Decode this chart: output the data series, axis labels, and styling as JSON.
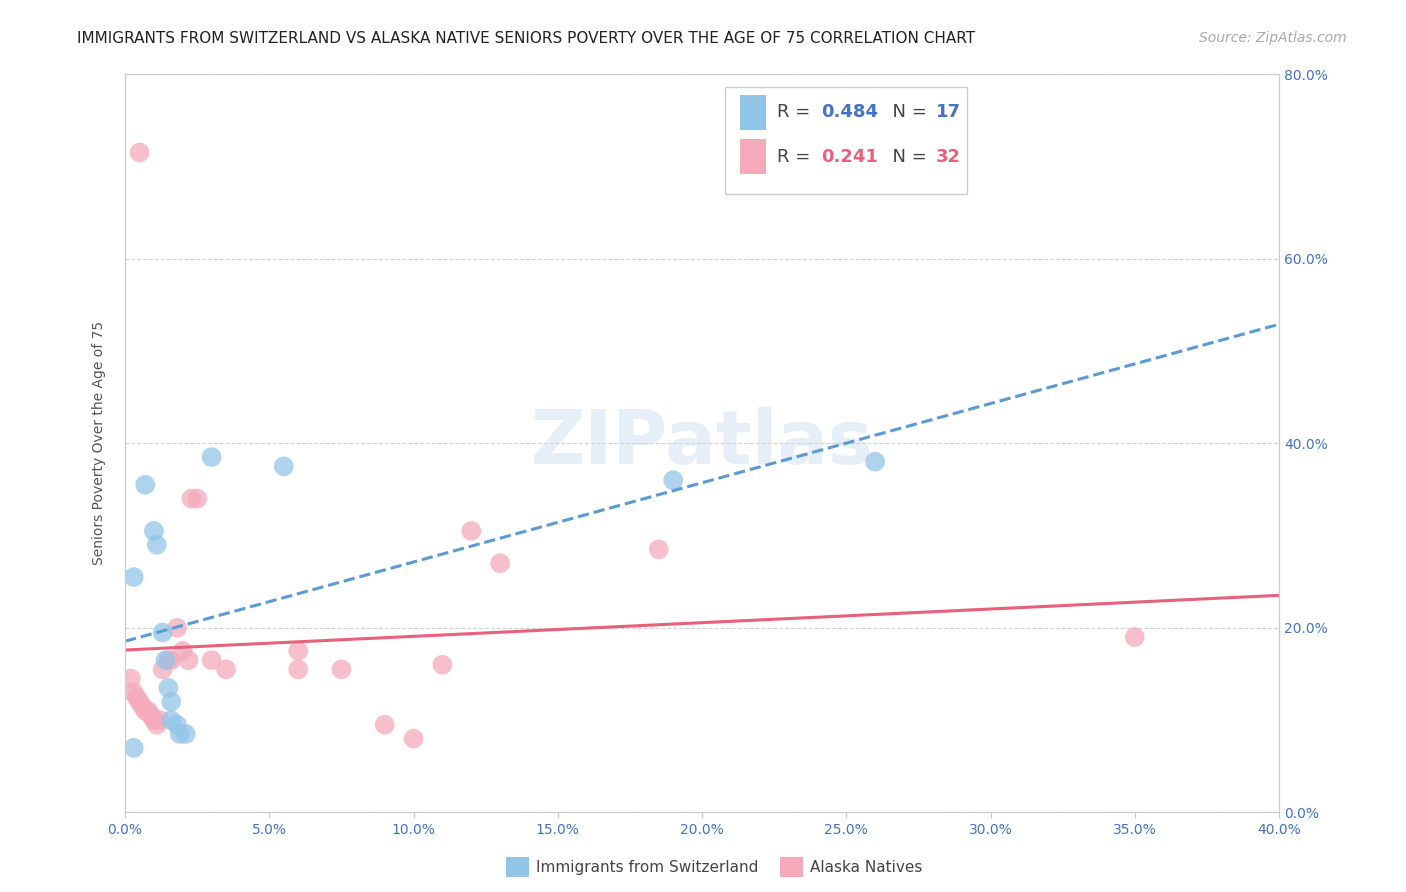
{
  "title": "IMMIGRANTS FROM SWITZERLAND VS ALASKA NATIVE SENIORS POVERTY OVER THE AGE OF 75 CORRELATION CHART",
  "source": "Source: ZipAtlas.com",
  "ylabel": "Seniors Poverty Over the Age of 75",
  "xlim": [
    0.0,
    0.4
  ],
  "ylim": [
    0.0,
    0.8
  ],
  "xticks": [
    0.0,
    0.05,
    0.1,
    0.15,
    0.2,
    0.25,
    0.3,
    0.35,
    0.4
  ],
  "yticks": [
    0.0,
    0.2,
    0.4,
    0.6,
    0.8
  ],
  "background_color": "#ffffff",
  "blue_color": "#92C5E8",
  "blue_line_color": "#5B9BD5",
  "blue_R": 0.484,
  "blue_N": 17,
  "blue_x": [
    0.003,
    0.007,
    0.01,
    0.011,
    0.013,
    0.014,
    0.015,
    0.016,
    0.016,
    0.018,
    0.019,
    0.021,
    0.03,
    0.055,
    0.19,
    0.26,
    0.003
  ],
  "blue_y": [
    0.255,
    0.355,
    0.305,
    0.29,
    0.195,
    0.165,
    0.135,
    0.12,
    0.1,
    0.095,
    0.085,
    0.085,
    0.385,
    0.375,
    0.36,
    0.38,
    0.07
  ],
  "pink_color": "#F4AABA",
  "pink_line_color": "#E8607A",
  "pink_R": 0.241,
  "pink_N": 32,
  "pink_x": [
    0.002,
    0.003,
    0.004,
    0.005,
    0.006,
    0.007,
    0.008,
    0.009,
    0.01,
    0.011,
    0.012,
    0.013,
    0.015,
    0.016,
    0.018,
    0.02,
    0.022,
    0.023,
    0.025,
    0.03,
    0.035,
    0.06,
    0.06,
    0.075,
    0.09,
    0.1,
    0.11,
    0.12,
    0.13,
    0.185,
    0.35,
    0.005
  ],
  "pink_y": [
    0.145,
    0.13,
    0.125,
    0.12,
    0.115,
    0.11,
    0.11,
    0.105,
    0.1,
    0.095,
    0.1,
    0.155,
    0.165,
    0.165,
    0.2,
    0.175,
    0.165,
    0.34,
    0.34,
    0.165,
    0.155,
    0.175,
    0.155,
    0.155,
    0.095,
    0.08,
    0.16,
    0.305,
    0.27,
    0.285,
    0.19,
    0.715
  ],
  "title_fontsize": 11,
  "tick_fontsize": 10,
  "legend_fontsize": 13,
  "source_fontsize": 10,
  "axis_label_fontsize": 10
}
